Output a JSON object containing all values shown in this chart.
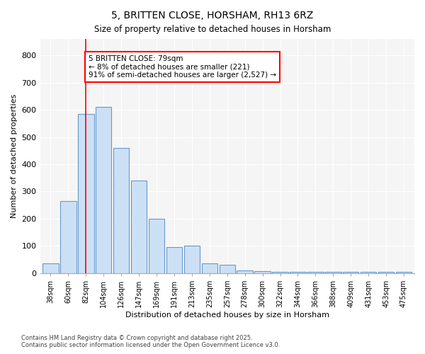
{
  "title": "5, BRITTEN CLOSE, HORSHAM, RH13 6RZ",
  "subtitle": "Size of property relative to detached houses in Horsham",
  "xlabel": "Distribution of detached houses by size in Horsham",
  "ylabel": "Number of detached properties",
  "categories": [
    "38sqm",
    "60sqm",
    "82sqm",
    "104sqm",
    "126sqm",
    "147sqm",
    "169sqm",
    "191sqm",
    "213sqm",
    "235sqm",
    "257sqm",
    "278sqm",
    "300sqm",
    "322sqm",
    "344sqm",
    "366sqm",
    "388sqm",
    "409sqm",
    "431sqm",
    "453sqm",
    "475sqm"
  ],
  "values": [
    35,
    265,
    585,
    610,
    460,
    340,
    200,
    95,
    100,
    35,
    30,
    10,
    8,
    5,
    5,
    5,
    5,
    5,
    5,
    5,
    5
  ],
  "bar_color": "#cce0f5",
  "bar_edge_color": "#6699cc",
  "vline_x": 2,
  "vline_color": "red",
  "annotation_text": "5 BRITTEN CLOSE: 79sqm\n← 8% of detached houses are smaller (221)\n91% of semi-detached houses are larger (2,527) →",
  "annotation_box_color": "white",
  "annotation_box_edge": "red",
  "ylim": [
    0,
    860
  ],
  "yticks": [
    0,
    100,
    200,
    300,
    400,
    500,
    600,
    700,
    800
  ],
  "footer": "Contains HM Land Registry data © Crown copyright and database right 2025.\nContains public sector information licensed under the Open Government Licence v3.0.",
  "bg_color": "#ffffff",
  "plot_bg_color": "#f5f5f5",
  "grid_color": "#ffffff"
}
